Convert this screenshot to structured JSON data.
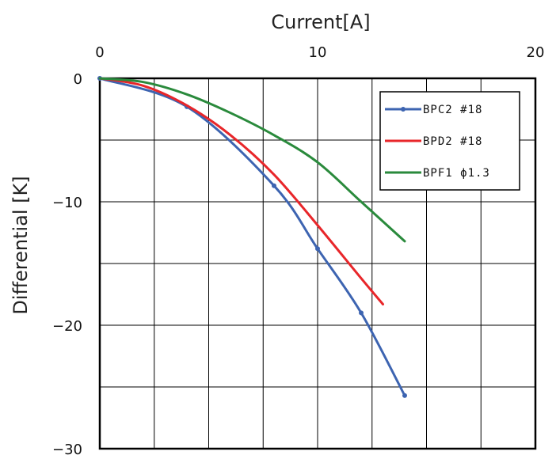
{
  "chart_data": {
    "type": "line",
    "title": "",
    "xlabel": "Current[A]",
    "ylabel": "Differential [K]",
    "x_axis_position": "top",
    "xlim": [
      0,
      20
    ],
    "ylim": [
      -30,
      0
    ],
    "xticks": [
      "0",
      "10",
      "20"
    ],
    "xtick_values": [
      0,
      10,
      20
    ],
    "yticks": [
      "0",
      "−10",
      "−20",
      "−30"
    ],
    "ytick_values": [
      0,
      -10,
      -20,
      -30
    ],
    "x_grid_step": 2.5,
    "y_grid_step": 5,
    "grid": true,
    "legend_position": "top-right",
    "series": [
      {
        "name": "BPC2 #18",
        "color": "#3d64b1",
        "markers": true,
        "x": [
          0,
          4,
          8,
          10,
          12,
          14
        ],
        "y": [
          0,
          -2.3,
          -8.7,
          -13.8,
          -19.0,
          -25.7
        ]
      },
      {
        "name": "BPD2 #18",
        "color": "#e8262a",
        "markers": false,
        "x": [
          0,
          2,
          4,
          6,
          8,
          10,
          12,
          13
        ],
        "y": [
          0,
          -0.6,
          -2.2,
          -4.6,
          -7.8,
          -11.9,
          -16.2,
          -18.3
        ]
      },
      {
        "name": "BPF1 ϕ1.3",
        "color": "#2a8a3c",
        "markers": false,
        "x": [
          0,
          2,
          4,
          6,
          8,
          10,
          12,
          14
        ],
        "y": [
          0,
          -0.3,
          -1.3,
          -2.8,
          -4.6,
          -6.8,
          -10.0,
          -13.2
        ]
      }
    ]
  }
}
